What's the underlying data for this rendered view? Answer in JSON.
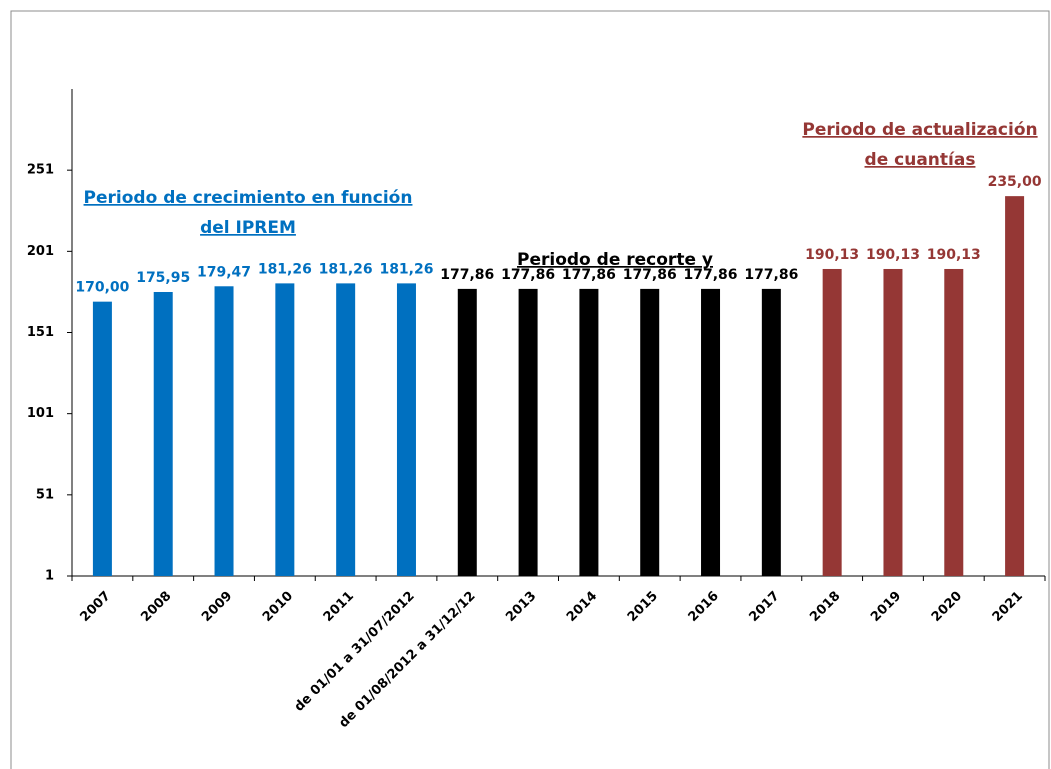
{
  "chart_data": {
    "type": "bar",
    "categories": [
      "2007",
      "2008",
      "2009",
      "2010",
      "2011",
      "de 01/01 a 31/07/2012",
      "de 01/08/2012 a 31/12/12",
      "2013",
      "2014",
      "2015",
      "2016",
      "2017",
      "2018",
      "2019",
      "2020",
      "2021"
    ],
    "values": [
      170.0,
      175.95,
      179.47,
      181.26,
      181.26,
      181.26,
      177.86,
      177.86,
      177.86,
      177.86,
      177.86,
      177.86,
      190.13,
      190.13,
      190.13,
      235.0
    ],
    "value_labels": [
      "170,00",
      "175,95",
      "179,47",
      "181,26",
      "181,26",
      "181,26",
      "177,86",
      "177,86",
      "177,86",
      "177,86",
      "177,86",
      "177,86",
      "190,13",
      "190,13",
      "190,13",
      "235,00"
    ],
    "colors": [
      "#0070c0",
      "#0070c0",
      "#0070c0",
      "#0070c0",
      "#0070c0",
      "#0070c0",
      "#000000",
      "#000000",
      "#000000",
      "#000000",
      "#000000",
      "#000000",
      "#953735",
      "#953735",
      "#953735",
      "#953735"
    ],
    "ylim": [
      1,
      301
    ],
    "yticks": [
      1,
      51,
      101,
      151,
      201,
      251
    ],
    "grid": false,
    "annotations": [
      {
        "lines": [
          "Periodo de crecimiento en función",
          "del IPREM"
        ],
        "color": "#0070c0"
      },
      {
        "lines": [
          "Periodo de recorte y"
        ],
        "color": "#000000"
      },
      {
        "lines": [
          "Periodo de actualización",
          "de cuantías"
        ],
        "color": "#953735"
      }
    ]
  }
}
